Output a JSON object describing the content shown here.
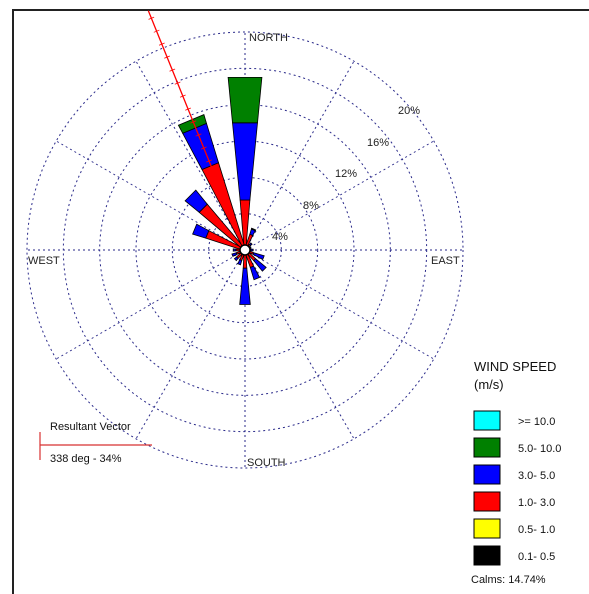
{
  "chart_data": {
    "type": "windrose",
    "directions": [
      "N",
      "NNE",
      "NE",
      "ENE",
      "E",
      "ESE",
      "SE",
      "SSE",
      "S",
      "SSW",
      "SW",
      "WSW",
      "W",
      "WNW",
      "NW",
      "NNW"
    ],
    "ring_labels": [
      "4%",
      "8%",
      "12%",
      "16%",
      "20%"
    ],
    "ring_values": [
      4,
      8,
      12,
      16,
      20
    ],
    "max_percent": 24,
    "compass_labels": {
      "north": "NORTH",
      "south": "SOUTH",
      "east": "EAST",
      "west": "WEST"
    },
    "series": [
      {
        "name": "0.1- 0.5",
        "color": "#000000",
        "values": [
          0,
          0,
          0,
          0,
          0,
          0,
          0,
          0,
          0,
          0,
          0,
          0,
          0,
          0,
          0,
          0
        ]
      },
      {
        "name": "0.5- 1.0",
        "color": "#ffff00",
        "values": [
          0,
          0,
          0,
          0,
          0,
          0,
          0,
          0,
          0,
          0,
          0,
          0,
          0,
          0,
          0,
          0
        ]
      },
      {
        "name": "1.0- 3.0",
        "color": "#ff0000",
        "values": [
          5.5,
          1.8,
          0.8,
          0.5,
          0.6,
          1.0,
          1.5,
          2.0,
          2.0,
          1.2,
          1.2,
          1.0,
          1.0,
          4.5,
          6.5,
          10.0
        ]
      },
      {
        "name": "3.0- 5.0",
        "color": "#0000ff",
        "values": [
          8.5,
          0.6,
          0.2,
          0.2,
          0.3,
          1.2,
          1.5,
          1.4,
          4.0,
          0.5,
          0.3,
          0.5,
          0.3,
          1.5,
          2.0,
          4.5
        ]
      },
      {
        "name": "5.0- 10.0",
        "color": "#008000",
        "values": [
          5.0,
          0.1,
          0,
          0,
          0,
          0,
          0,
          0,
          0,
          0,
          0,
          0,
          0,
          0,
          0,
          1.0
        ]
      },
      {
        "name": ">= 10.0",
        "color": "#00ffff",
        "values": [
          0,
          0,
          0,
          0,
          0,
          0,
          0,
          0,
          0,
          0,
          0,
          0,
          0,
          0,
          0,
          0
        ]
      }
    ],
    "legend": {
      "title": "WIND SPEED",
      "unit": "(m/s)",
      "entries": [
        {
          "label": ">= 10.0",
          "color": "#00ffff"
        },
        {
          "label": "5.0- 10.0",
          "color": "#008000"
        },
        {
          "label": "3.0- 5.0",
          "color": "#0000ff"
        },
        {
          "label": "1.0- 3.0",
          "color": "#ff0000"
        },
        {
          "label": "0.5- 1.0",
          "color": "#ffff00"
        },
        {
          "label": "0.1- 0.5",
          "color": "#000000"
        }
      ],
      "calms": "Calms: 14.74%"
    },
    "resultant_vector": {
      "title": "Resultant Vector",
      "label": "338 deg - 34%",
      "direction_deg": 338,
      "color": "#ff0000"
    }
  }
}
